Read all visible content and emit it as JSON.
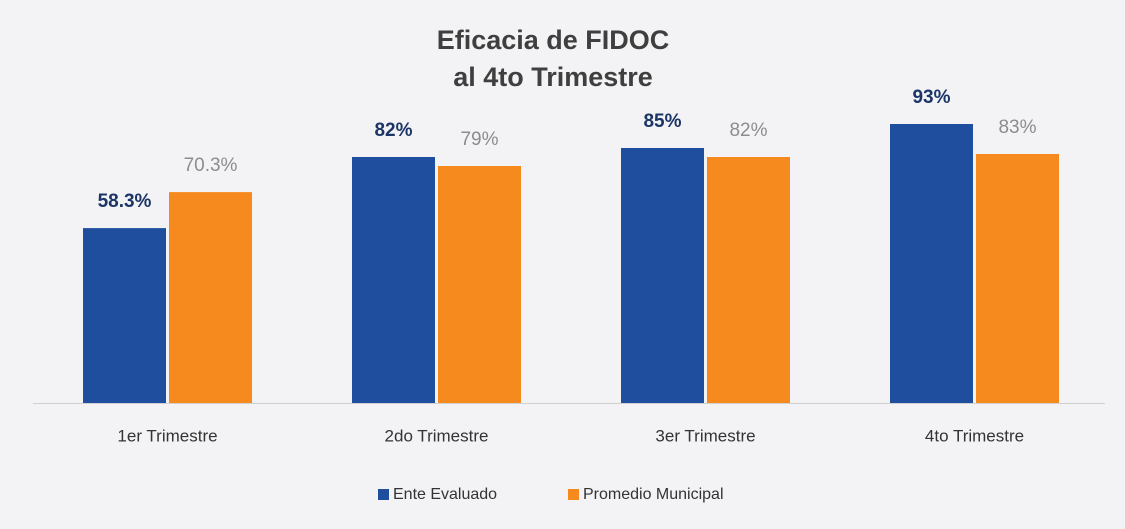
{
  "chart_data": {
    "type": "bar",
    "title": [
      "Eficacia  de FIDOC",
      "al 4to Trimestre"
    ],
    "categories": [
      "1er Trimestre",
      "2do Trimestre",
      "3er Trimestre",
      "4to Trimestre"
    ],
    "series": [
      {
        "name": "Ente Evaluado",
        "color": "#1f4e9e",
        "values": [
          58.3,
          82,
          85,
          93
        ],
        "value_labels": [
          "58.3%",
          "82%",
          "85%",
          "93%"
        ]
      },
      {
        "name": "Promedio Municipal",
        "color": "#f68a1f",
        "values": [
          70.3,
          79,
          82,
          83
        ],
        "value_labels": [
          "70.3%",
          "79%",
          "82%",
          "83%"
        ]
      }
    ]
  }
}
